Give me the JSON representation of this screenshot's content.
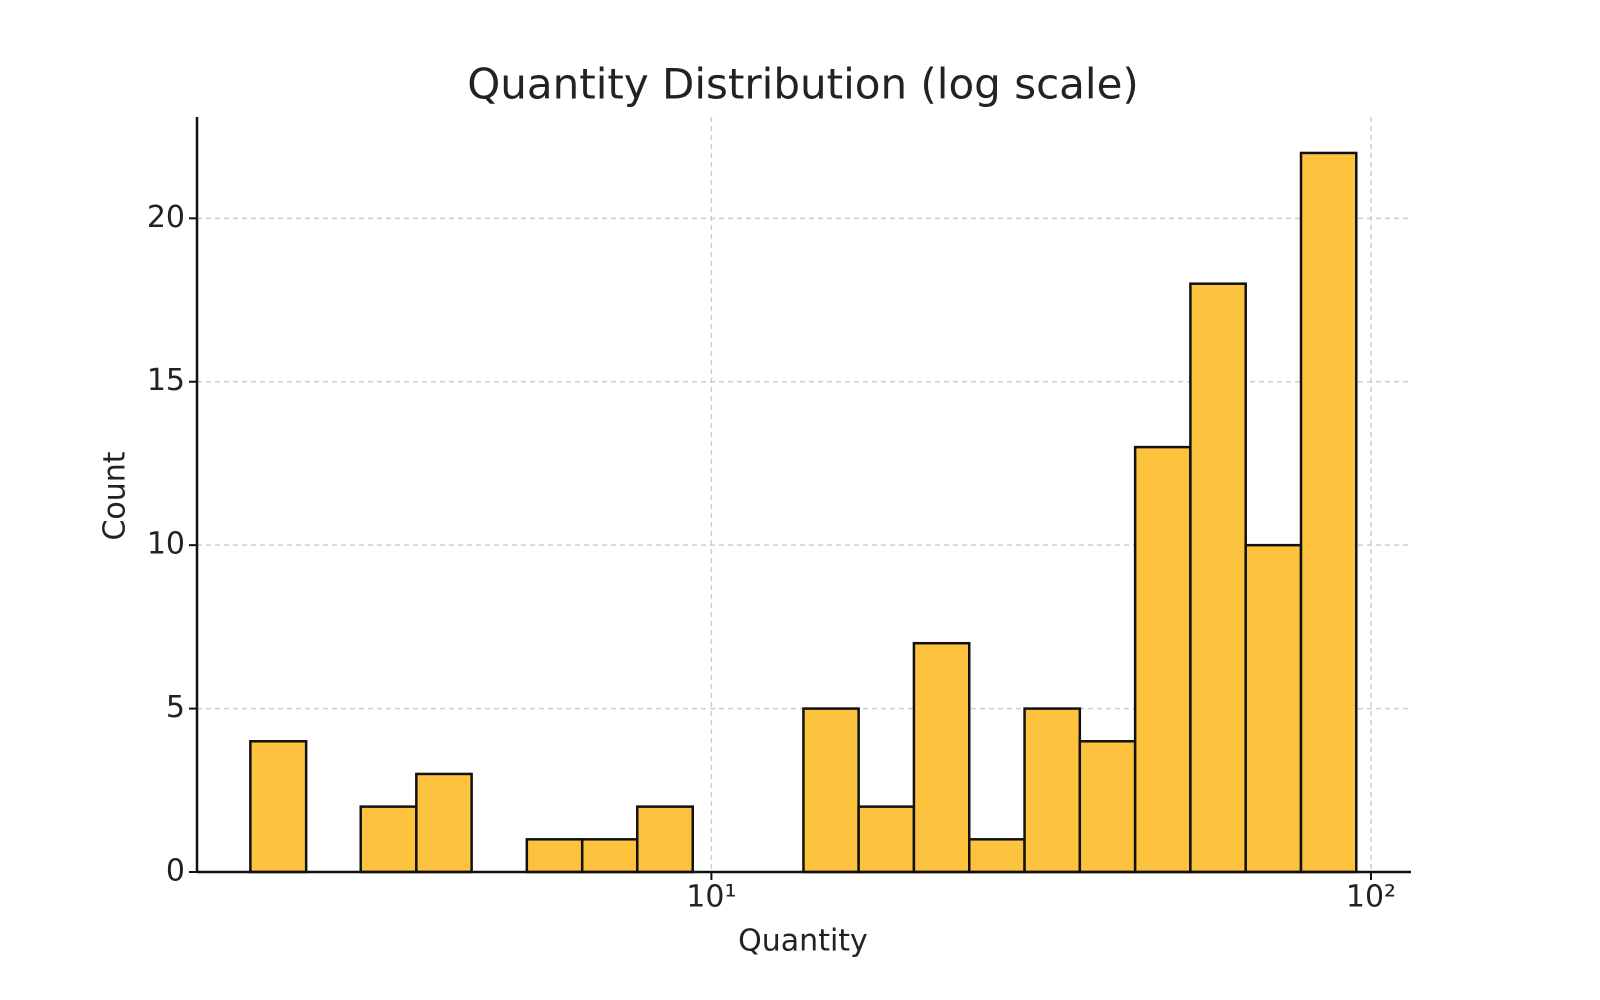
{
  "chart_data": {
    "type": "histogram",
    "title": "Quantity Distribution (log scale)",
    "x_label": "Quantity",
    "y_label": "Count",
    "bins": [
      2,
      2.43,
      2.94,
      3.57,
      4.33,
      5.25,
      6.37,
      7.72,
      9.37,
      11.36,
      13.79,
      16.72,
      20.28,
      24.6,
      29.84,
      36.19,
      43.9,
      53.24,
      64.58,
      78.33,
      95
    ],
    "counts": [
      4,
      0,
      2,
      3,
      0,
      1,
      1,
      2,
      0,
      0,
      5,
      2,
      7,
      1,
      5,
      4,
      13,
      18,
      10,
      22
    ],
    "color": "#fdc23e",
    "edgecolor": "#111111",
    "x_log": true,
    "xlim": [
      1.66,
      115
    ],
    "xticks": [
      {
        "value": 10,
        "label": "10¹"
      },
      {
        "value": 100,
        "label": "10²"
      }
    ],
    "ylim": [
      0,
      23.1
    ],
    "yticks": [
      0,
      5,
      10,
      15,
      20
    ],
    "grid": true
  }
}
